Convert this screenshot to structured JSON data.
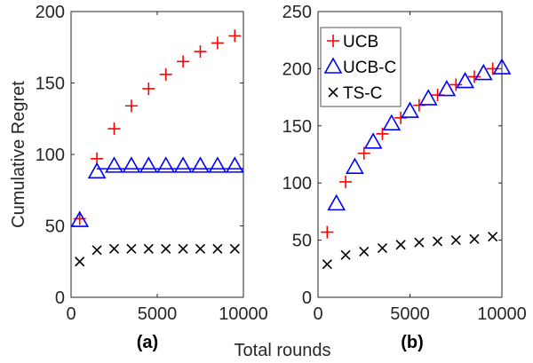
{
  "figure": {
    "ylabel": "Cumulative Regret",
    "xlabel": "Total rounds"
  },
  "chart_data": [
    {
      "type": "scatter",
      "panel_label": "(a)",
      "xlim": [
        0,
        10000
      ],
      "ylim": [
        0,
        200
      ],
      "xticks": [
        "0",
        "5000",
        "10000"
      ],
      "yticks": [
        "0",
        "50",
        "100",
        "150",
        "200"
      ],
      "grid": false,
      "colors": {
        "UCB": "#ff0000",
        "UCB-C": "#0000ff",
        "TS-C": "#000000"
      },
      "series": [
        {
          "name": "UCB",
          "marker": "plus",
          "x": [
            500,
            1500,
            2500,
            3500,
            4500,
            5500,
            6500,
            7500,
            8500,
            9500
          ],
          "y": [
            55,
            97,
            118,
            134,
            146,
            156,
            165,
            172,
            178,
            183
          ]
        },
        {
          "name": "UCB-C",
          "marker": "triangle",
          "line_y": 90,
          "x": [
            500,
            1500,
            2500,
            3500,
            4500,
            5500,
            6500,
            7500,
            8500,
            9500
          ],
          "y": [
            54,
            88,
            92,
            92,
            92,
            92,
            92,
            92,
            92,
            92
          ]
        },
        {
          "name": "TS-C",
          "marker": "cross",
          "x": [
            500,
            1500,
            2500,
            3500,
            4500,
            5500,
            6500,
            7500,
            8500,
            9500
          ],
          "y": [
            25,
            33,
            34,
            34,
            34,
            34,
            34,
            34,
            34,
            34
          ]
        }
      ]
    },
    {
      "type": "scatter",
      "panel_label": "(b)",
      "xlim": [
        0,
        10000
      ],
      "ylim": [
        0,
        250
      ],
      "xticks": [
        "0",
        "5000",
        "10000"
      ],
      "yticks": [
        "0",
        "50",
        "100",
        "150",
        "200",
        "250"
      ],
      "grid": false,
      "legend": "top-left",
      "colors": {
        "UCB": "#ff0000",
        "UCB-C": "#0000ff",
        "TS-C": "#000000"
      },
      "series": [
        {
          "name": "UCB",
          "marker": "plus",
          "x": [
            500,
            1500,
            2500,
            3500,
            4500,
            5500,
            6500,
            7500,
            8500,
            9500
          ],
          "y": [
            57,
            101,
            126,
            143,
            157,
            168,
            177,
            186,
            193,
            200
          ]
        },
        {
          "name": "UCB-C",
          "marker": "triangle",
          "x": [
            1000,
            2000,
            3000,
            4000,
            5000,
            6000,
            7000,
            8000,
            9000,
            10000
          ],
          "y": [
            82,
            114,
            136,
            152,
            163,
            174,
            182,
            189,
            196,
            201
          ]
        },
        {
          "name": "TS-C",
          "marker": "cross",
          "x": [
            500,
            1500,
            2500,
            3500,
            4500,
            5500,
            6500,
            7500,
            8500,
            9500
          ],
          "y": [
            29,
            37,
            40,
            43,
            46,
            48,
            49,
            50,
            51,
            53
          ]
        }
      ]
    }
  ]
}
